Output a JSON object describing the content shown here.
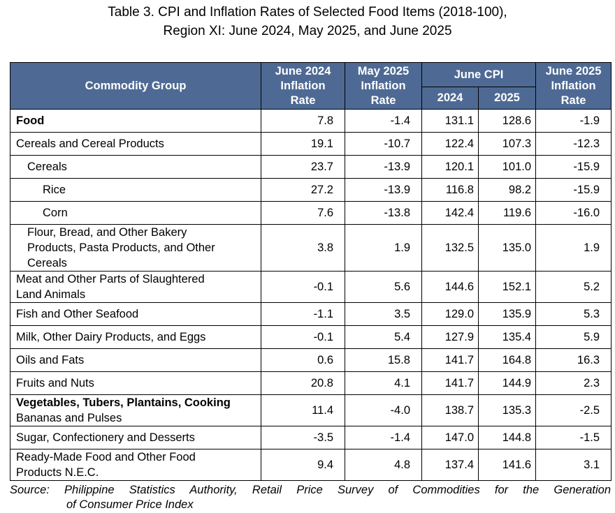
{
  "title": {
    "line1": "Table 3. CPI and Inflation Rates of Selected Food Items (2018-100),",
    "line2": "Region XI: June 2024, May 2025, and June 2025"
  },
  "headers": {
    "commodity_group": "Commodity Group",
    "june2024_rate": [
      "June 2024",
      "Inflation",
      "Rate"
    ],
    "may2025_rate": [
      "May 2025",
      "Inflation",
      "Rate"
    ],
    "june_cpi": "June CPI",
    "cpi_2024": "2024",
    "cpi_2025": "2025",
    "june2025_rate": [
      "June 2025",
      "Inflation",
      "Rate"
    ]
  },
  "rows": [
    {
      "label": "Food",
      "jun2024": "7.8",
      "may2025": "-1.4",
      "cpi2024": "131.1",
      "cpi2025": "128.6",
      "jun2025": "-1.9"
    },
    {
      "label": "Cereals and Cereal Products",
      "jun2024": "19.1",
      "may2025": "-10.7",
      "cpi2024": "122.4",
      "cpi2025": "107.3",
      "jun2025": "-12.3"
    },
    {
      "label": "Cereals",
      "jun2024": "23.7",
      "may2025": "-13.9",
      "cpi2024": "120.1",
      "cpi2025": "101.0",
      "jun2025": "-15.9"
    },
    {
      "label": "Rice",
      "jun2024": "27.2",
      "may2025": "-13.9",
      "cpi2024": "116.8",
      "cpi2025": "98.2",
      "jun2025": "-15.9"
    },
    {
      "label": "Corn",
      "jun2024": "7.6",
      "may2025": "-13.8",
      "cpi2024": "142.4",
      "cpi2025": "119.6",
      "jun2025": "-16.0"
    },
    {
      "label": [
        "Flour, Bread, and Other Bakery",
        "Products, Pasta Products, and Other",
        "Cereals"
      ],
      "jun2024": "3.8",
      "may2025": "1.9",
      "cpi2024": "132.5",
      "cpi2025": "135.0",
      "jun2025": "1.9"
    },
    {
      "label": [
        "Meat and Other Parts of Slaughtered",
        "Land Animals"
      ],
      "jun2024": "-0.1",
      "may2025": "5.6",
      "cpi2024": "144.6",
      "cpi2025": "152.1",
      "jun2025": "5.2"
    },
    {
      "label": "Fish and Other Seafood",
      "jun2024": "-1.1",
      "may2025": "3.5",
      "cpi2024": "129.0",
      "cpi2025": "135.9",
      "jun2025": "5.3"
    },
    {
      "label": "Milk, Other Dairy Products, and Eggs",
      "jun2024": "-0.1",
      "may2025": "5.4",
      "cpi2024": "127.9",
      "cpi2025": "135.4",
      "jun2025": "5.9"
    },
    {
      "label": "Oils and Fats",
      "jun2024": "0.6",
      "may2025": "15.8",
      "cpi2024": "141.7",
      "cpi2025": "164.8",
      "jun2025": "16.3"
    },
    {
      "label": "Fruits and Nuts",
      "jun2024": "20.8",
      "may2025": "4.1",
      "cpi2024": "141.7",
      "cpi2025": "144.9",
      "jun2025": "2.3"
    },
    {
      "label": [
        "Vegetables, Tubers, Plantains, Cooking",
        "Bananas and Pulses"
      ],
      "jun2024": "11.4",
      "may2025": "-4.0",
      "cpi2024": "138.7",
      "cpi2025": "135.3",
      "jun2025": "-2.5"
    },
    {
      "label": "Sugar, Confectionery and Desserts",
      "jun2024": "-3.5",
      "may2025": "-1.4",
      "cpi2024": "147.0",
      "cpi2025": "144.8",
      "jun2025": "-1.5"
    },
    {
      "label": [
        "Ready-Made Food and Other Food",
        "Products N.E.C."
      ],
      "jun2024": "9.4",
      "may2025": "4.8",
      "cpi2024": "137.4",
      "cpi2025": "141.6",
      "jun2025": "3.1"
    }
  ],
  "source": {
    "line1": "Source:  Philippine  Statistics  Authority,  Retail  Price  Survey  of  Commodities  for  the  Generation",
    "line2": "of Consumer Price Index"
  }
}
